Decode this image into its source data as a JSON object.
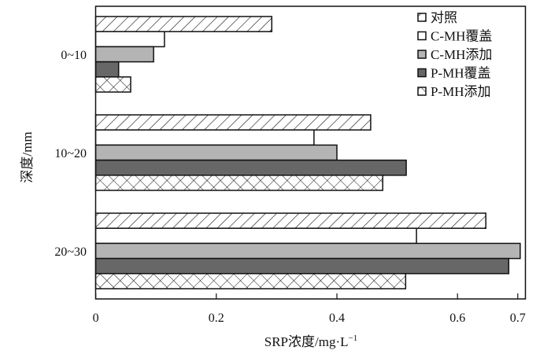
{
  "chart_data": {
    "type": "bar",
    "orientation": "horizontal",
    "title": "",
    "xlabel": "SRP浓度/mg·L",
    "xlabel_superscript": "−1",
    "ylabel": "深度/mm",
    "xlim": [
      0,
      0.7
    ],
    "xticks": [
      "0",
      "0.2",
      "0.4",
      "0.6",
      "0.7"
    ],
    "xtick_values": [
      0,
      0.2,
      0.4,
      0.6,
      0.7
    ],
    "categories": [
      "0~10",
      "10~20",
      "20~30"
    ],
    "legend_position": "top-right",
    "grid": false,
    "series": [
      {
        "name": "对照",
        "fill": "hatch",
        "values": [
          0.292,
          0.456,
          0.647
        ]
      },
      {
        "name": "C-MH覆盖",
        "fill": "#ffffff",
        "values": [
          0.114,
          0.362,
          0.532
        ]
      },
      {
        "name": "C-MH添加",
        "fill": "#b4b4b4",
        "values": [
          0.096,
          0.4,
          0.704
        ]
      },
      {
        "name": "P-MH覆盖",
        "fill": "#676767",
        "values": [
          0.038,
          0.515,
          0.685
        ]
      },
      {
        "name": "P-MH添加",
        "fill": "crosshatch",
        "values": [
          0.058,
          0.476,
          0.514
        ]
      }
    ]
  }
}
